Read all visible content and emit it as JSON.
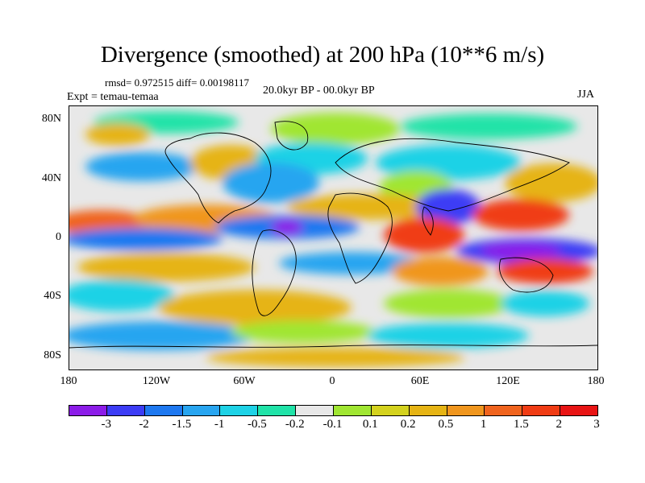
{
  "title": "Divergence (smoothed) at 200 hPa (10**6 m/s)",
  "stats": "rmsd= 0.972515  diff= 0.00198117",
  "experiment": "Expt = temau-temaa",
  "period": "20.0kyr BP - 00.0kyr BP",
  "season": "JJA",
  "lat_labels": [
    "80N",
    "40N",
    "0",
    "40S",
    "80S"
  ],
  "lon_labels": [
    "180",
    "120W",
    "60W",
    "0",
    "60E",
    "120E",
    "180"
  ],
  "colorbar": {
    "colors": [
      "#8c1ce8",
      "#3c3cf5",
      "#1e78f0",
      "#28a5f0",
      "#1ed2e6",
      "#20e3a8",
      "#e8e8e8",
      "#a0e632",
      "#d4d21e",
      "#e6b414",
      "#f0961e",
      "#f0641e",
      "#f03c14",
      "#e81414"
    ],
    "labels": [
      "-3",
      "-2",
      "-1.5",
      "-1",
      "-0.5",
      "-0.2",
      "-0.1",
      "0.1",
      "0.2",
      "0.5",
      "1",
      "1.5",
      "2",
      "3"
    ]
  }
}
